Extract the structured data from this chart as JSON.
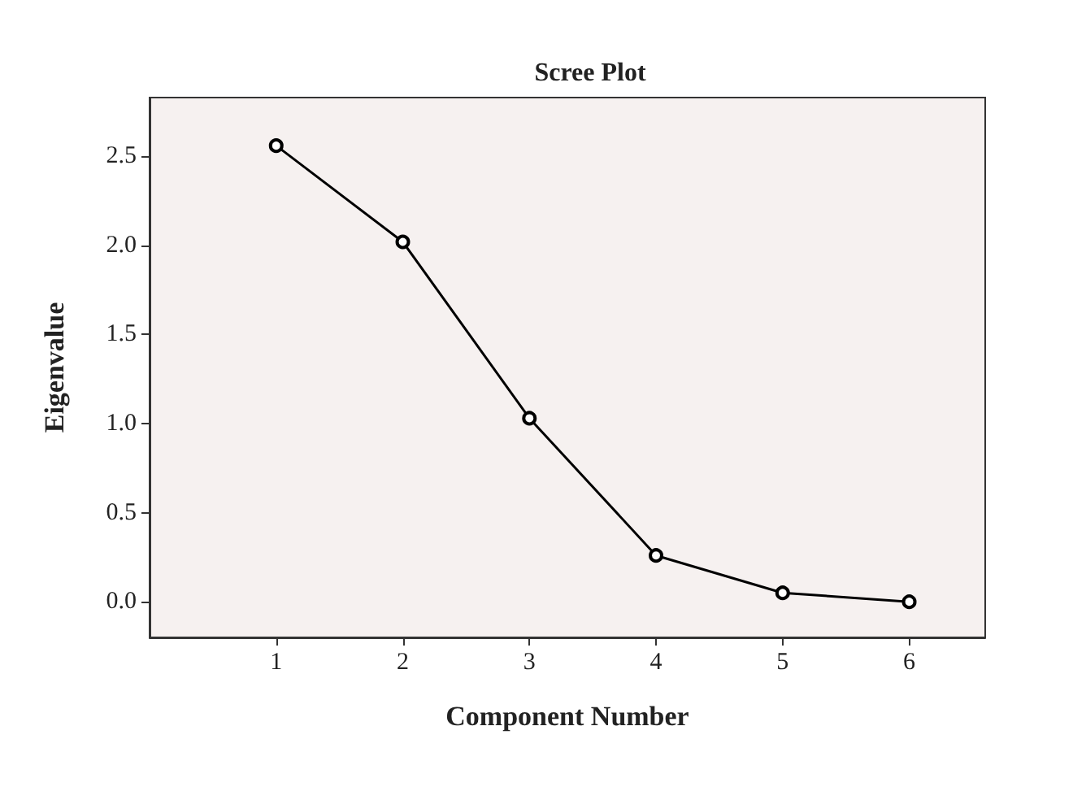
{
  "chart_data": {
    "type": "line",
    "title": "Scree Plot",
    "xlabel": "Component Number",
    "ylabel": "Eigenvalue",
    "x": [
      1,
      2,
      3,
      4,
      5,
      6
    ],
    "values": [
      2.56,
      2.02,
      1.03,
      0.26,
      0.05,
      0.0
    ],
    "color": "#000000",
    "marker": "circle",
    "line_style": "solid",
    "grid": false,
    "xlim": [
      0,
      6.6
    ],
    "xticks": [
      1,
      2,
      3,
      4,
      5,
      6
    ],
    "ylim": [
      -0.2,
      2.83
    ],
    "yticks": [
      {
        "value": 0,
        "label": "0.0"
      },
      {
        "value": 0.5,
        "label": "0.5"
      },
      {
        "value": 1,
        "label": "1.0"
      },
      {
        "value": 1.5,
        "label": "1.5"
      },
      {
        "value": 2,
        "label": "2.0"
      },
      {
        "value": 2.5,
        "label": "2.5"
      }
    ]
  }
}
